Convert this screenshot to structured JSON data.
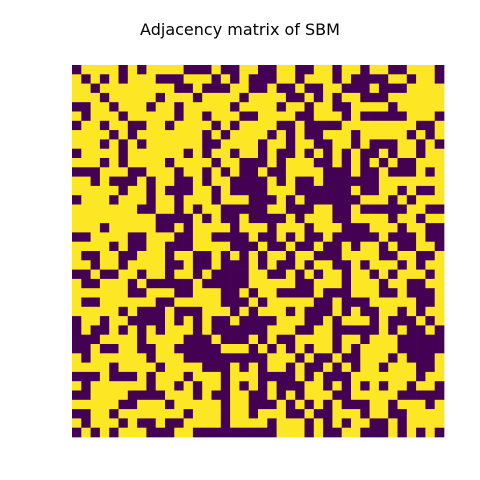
{
  "chart_data": {
    "type": "heatmap",
    "title": "Adjacency matrix of SBM",
    "xlabel": "",
    "ylabel": "",
    "axes_visible": false,
    "grid": false,
    "colormap": "viridis",
    "colors": {
      "zero": "#440154",
      "one": "#fde725"
    },
    "shape": [
      40,
      40
    ],
    "values": [
      "0111101011110001001100110011011011001110",
      "1010101110001110101000110111010000110110",
      "1101111111100100011001001001100010001111",
      "1110111110111011110111100101011000111111",
      "0011011101101111101111011011001111011111",
      "1011101111101101110011110011101000001110",
      "0110110011011110101111001000011111111001",
      "1111010111111101011110101001110111110101",
      "1110101011111100111101101100110100011010",
      "0111101111110101101101001010101001011011",
      "1110101111011110110001011100101010100111",
      "0001110011101101010010011110001001000101",
      "1101000101100101100001010010000001111111",
      "1111101101000110100001110000001001101001",
      "0111011101101110111000101000000111010111",
      "1111111001101011000001100011001000001100",
      "1111111110000101001000010111001111011011",
      "1110111110010111101110111011100011101100",
      "0011110011100110000100101001000001000100",
      "1111010011000111100010010010010110100110",
      "1001100111011001010101101100011110011001",
      "1101101111001001000101001011001011101011",
      "0010011011011010000110010101101101011101",
      "1001110100000100000111110011101110110011",
      "1111110011100111001011000010001110010001",
      "1001111110011111000101111100100011111001",
      "1111101000100011101011101000101001101011",
      "0110110000101010010000111001011101000101",
      "0100101010111010000001110011000001010010",
      "0001111011110001000101001111011011100000",
      "0010011001100000111010101011010111100000",
      "1011111101110000000001110100100111010001",
      "1111011110111100010101101001010110111001",
      "0001000101110111011100001010001111111011",
      "1011111101101011010101000110101010110110",
      "0011110000111010011001010111001111100000",
      "1111100111011111011000101010100011011101",
      "0011011111110111011011100100111011001111",
      "1011101001001111011110111010101100101111",
      "0101011100011000000000111010011000101010"
    ]
  }
}
